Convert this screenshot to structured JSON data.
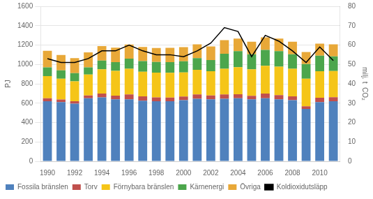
{
  "chart_data": {
    "type": "bar",
    "stacked": true,
    "categories": [
      "1990",
      null,
      "1992",
      null,
      "1994",
      null,
      "1996",
      null,
      "1998",
      null,
      "2000",
      null,
      "2002",
      null,
      "2004",
      null,
      "2006",
      null,
      "2008",
      null,
      "2010",
      null
    ],
    "series": [
      {
        "name": "Fossila bränslen",
        "color": "#4F81BD",
        "values": [
          620,
          610,
          595,
          650,
          660,
          640,
          640,
          625,
          620,
          620,
          630,
          645,
          640,
          645,
          650,
          640,
          650,
          640,
          630,
          540,
          610,
          620
        ]
      },
      {
        "name": "Torv",
        "color": "#C0504D",
        "values": [
          30,
          28,
          25,
          30,
          40,
          38,
          50,
          45,
          40,
          38,
          38,
          45,
          40,
          45,
          42,
          35,
          50,
          42,
          40,
          28,
          45,
          42
        ]
      },
      {
        "name": "Förnybara bränslen",
        "color": "#F5C518",
        "values": [
          230,
          215,
          205,
          215,
          250,
          255,
          265,
          255,
          255,
          255,
          250,
          255,
          250,
          265,
          280,
          275,
          285,
          295,
          285,
          285,
          275,
          270
        ]
      },
      {
        "name": "Kärnenergi",
        "color": "#4CA64C",
        "values": [
          90,
          85,
          85,
          75,
          90,
          90,
          105,
          110,
          110,
          110,
          115,
          120,
          115,
          155,
          165,
          155,
          165,
          160,
          150,
          150,
          160,
          150
        ]
      },
      {
        "name": "Övriga",
        "color": "#E8A838",
        "values": [
          170,
          160,
          155,
          155,
          150,
          150,
          145,
          145,
          145,
          148,
          145,
          143,
          140,
          140,
          130,
          130,
          130,
          130,
          130,
          125,
          125,
          125
        ]
      },
      {
        "name": "Koldioxidutsläpp",
        "color": "#000000",
        "type": "line",
        "axis": "y2",
        "values": [
          53,
          51,
          51,
          53,
          57,
          57,
          60,
          57,
          55,
          55,
          54,
          57,
          61,
          69,
          67,
          54,
          65,
          62,
          57,
          51,
          59,
          52
        ]
      }
    ],
    "ylabel": "PJ",
    "y2label": "milj. t  CO₂",
    "ylim": [
      0,
      1600
    ],
    "yticks": [
      0,
      200,
      400,
      600,
      800,
      1000,
      1200,
      1400,
      1600
    ],
    "y2lim": [
      0,
      80
    ],
    "y2ticks": [
      0,
      10,
      20,
      30,
      40,
      50,
      60,
      70,
      80
    ],
    "grid": true,
    "legend": "lower left"
  }
}
